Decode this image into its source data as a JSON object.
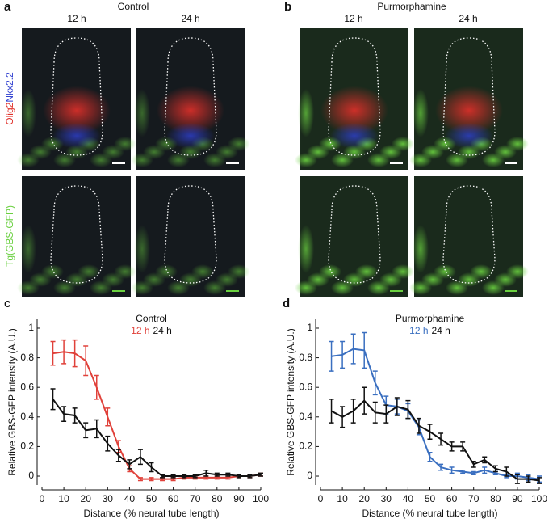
{
  "panels": [
    {
      "label": "a",
      "title": "Control",
      "columns": [
        "12 h",
        "24 h"
      ]
    },
    {
      "label": "b",
      "title": "Purmorphamine",
      "columns": [
        "12 h",
        "24 h"
      ]
    }
  ],
  "row_labels": {
    "top": [
      "Olig2",
      "Nkx2.2"
    ],
    "bottom": "Tg(GBS-GFP)"
  },
  "chart_data": [
    {
      "type": "line",
      "label": "c",
      "title": "Control",
      "xlabel": "Distance (% neural tube length)",
      "ylabel": "Relative GBS-GFP intensity (A.U.)",
      "x": [
        5,
        10,
        15,
        20,
        25,
        30,
        35,
        40,
        45,
        50,
        55,
        60,
        65,
        70,
        75,
        80,
        85,
        90,
        95,
        100
      ],
      "series": [
        {
          "name": "12 h",
          "color": "#e0413a",
          "values": [
            0.83,
            0.84,
            0.83,
            0.78,
            0.6,
            0.4,
            0.2,
            0.05,
            -0.02,
            -0.02,
            -0.02,
            -0.02,
            -0.01,
            -0.01,
            -0.01,
            -0.01,
            -0.01,
            0,
            0,
            0.01
          ],
          "errors": [
            0.08,
            0.08,
            0.09,
            0.1,
            0.08,
            0.06,
            0.04,
            0.02,
            0.01,
            0.01,
            0.01,
            0.01,
            0.01,
            0.01,
            0.01,
            0.01,
            0.01,
            0.01,
            0.01,
            0.01
          ]
        },
        {
          "name": "24 h",
          "color": "#111111",
          "values": [
            0.52,
            0.42,
            0.41,
            0.31,
            0.32,
            0.22,
            0.14,
            0.08,
            0.13,
            0.06,
            0,
            0,
            0,
            0,
            0.02,
            0.01,
            0.01,
            0,
            0,
            0.01
          ],
          "errors": [
            0.07,
            0.05,
            0.05,
            0.05,
            0.06,
            0.05,
            0.04,
            0.03,
            0.05,
            0.03,
            0.01,
            0.01,
            0.01,
            0.01,
            0.02,
            0.01,
            0.01,
            0.01,
            0.01,
            0.01
          ]
        }
      ],
      "xlim": [
        0,
        100
      ],
      "xticks": [
        0,
        10,
        20,
        30,
        40,
        50,
        60,
        70,
        80,
        90,
        100
      ],
      "ylim": [
        -0.06,
        1.06
      ],
      "yticks": [
        0,
        0.2,
        0.4,
        0.6,
        0.8,
        1
      ]
    },
    {
      "type": "line",
      "label": "d",
      "title": "Purmorphamine",
      "xlabel": "Distance (% neural tube length)",
      "ylabel": "Relative GBS-GFP intensity (A.U.)",
      "x": [
        5,
        10,
        15,
        20,
        25,
        30,
        35,
        40,
        45,
        50,
        55,
        60,
        65,
        70,
        75,
        80,
        85,
        90,
        95,
        100
      ],
      "series": [
        {
          "name": "12 h",
          "color": "#3a6fc0",
          "values": [
            0.81,
            0.82,
            0.86,
            0.85,
            0.63,
            0.48,
            0.47,
            0.44,
            0.33,
            0.13,
            0.06,
            0.04,
            0.03,
            0.02,
            0.04,
            0.02,
            0,
            0,
            -0.01,
            -0.02
          ],
          "errors": [
            0.1,
            0.09,
            0.1,
            0.12,
            0.08,
            0.06,
            0.05,
            0.05,
            0.05,
            0.03,
            0.02,
            0.02,
            0.01,
            0.01,
            0.02,
            0.01,
            0.01,
            0.02,
            0.02,
            0.02
          ]
        },
        {
          "name": "24 h",
          "color": "#111111",
          "values": [
            0.44,
            0.4,
            0.44,
            0.51,
            0.43,
            0.42,
            0.47,
            0.45,
            0.34,
            0.3,
            0.25,
            0.2,
            0.2,
            0.08,
            0.11,
            0.05,
            0.03,
            -0.02,
            -0.02,
            -0.03
          ],
          "errors": [
            0.08,
            0.07,
            0.08,
            0.09,
            0.07,
            0.06,
            0.06,
            0.06,
            0.05,
            0.05,
            0.04,
            0.03,
            0.03,
            0.02,
            0.02,
            0.02,
            0.03,
            0.03,
            0.02,
            0.02
          ]
        }
      ],
      "xlim": [
        0,
        100
      ],
      "xticks": [
        0,
        10,
        20,
        30,
        40,
        50,
        60,
        70,
        80,
        90,
        100
      ],
      "ylim": [
        -0.06,
        1.06
      ],
      "yticks": [
        0,
        0.2,
        0.4,
        0.6,
        0.8,
        1
      ]
    }
  ]
}
